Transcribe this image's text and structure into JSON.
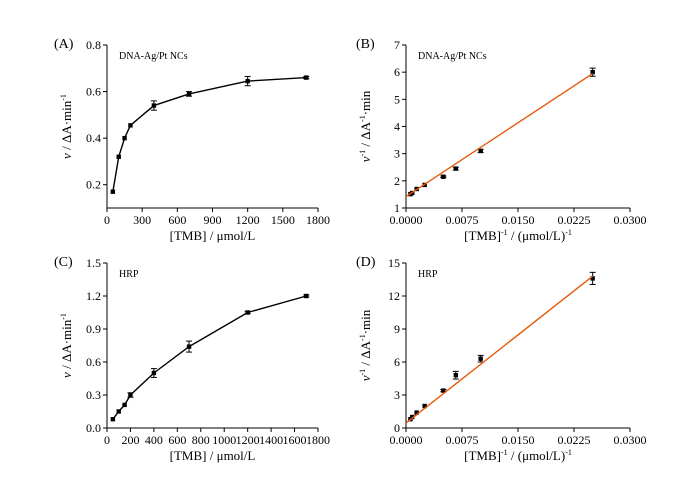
{
  "chart_data": [
    {
      "id": "A",
      "type": "line",
      "panel_label": "(A)",
      "annotation": "DNA-Ag/Pt NCs",
      "xlabel": "[TMB] / μmol/L",
      "ylabel": {
        "v": "v",
        "rest": " / ΔA·min",
        "sup": "-1"
      },
      "xlim": [
        0,
        1800
      ],
      "ylim": [
        0.1,
        0.8
      ],
      "xticks": [
        "0",
        "300",
        "600",
        "900",
        "1200",
        "1500",
        "1800"
      ],
      "xtick_values": [
        0,
        300,
        600,
        900,
        1200,
        1500,
        1800
      ],
      "yticks": [
        "0.2",
        "0.4",
        "0.6",
        "0.8"
      ],
      "ytick_values": [
        0.2,
        0.4,
        0.6,
        0.8
      ],
      "series": [
        {
          "name": "DNA-Ag/Pt NCs",
          "color": "#000000",
          "marker": "square",
          "x": [
            50,
            100,
            150,
            200,
            400,
            700,
            1200,
            1700
          ],
          "y": [
            0.17,
            0.32,
            0.4,
            0.455,
            0.54,
            0.59,
            0.645,
            0.66
          ],
          "err": [
            0,
            0,
            0,
            0,
            0.02,
            0.01,
            0.02,
            0.005
          ]
        }
      ]
    },
    {
      "id": "B",
      "type": "scatter",
      "panel_label": "(B)",
      "annotation": "DNA-Ag/Pt NCs",
      "xlabel": {
        "a": "[TMB]",
        "sup1": "-1",
        "b": " / (μmol/L)",
        "sup2": "-1"
      },
      "ylabel": {
        "v": "v",
        "sup1": "-1",
        "rest": " / ΔA",
        "sup2": "-1",
        "tail": "·min"
      },
      "xlim": [
        0,
        0.03
      ],
      "ylim": [
        1,
        7
      ],
      "xticks": [
        "0.0000",
        "0.0075",
        "0.0150",
        "0.0225",
        "0.0300"
      ],
      "xtick_values": [
        0,
        0.0075,
        0.015,
        0.0225,
        0.03
      ],
      "yticks": [
        "1",
        "2",
        "3",
        "4",
        "5",
        "6",
        "7"
      ],
      "ytick_values": [
        1,
        2,
        3,
        4,
        5,
        6,
        7
      ],
      "series": [
        {
          "name": "data",
          "color": "#000000",
          "marker": "square",
          "x": [
            0.000588,
            0.000833,
            0.001429,
            0.0025,
            0.005,
            0.00667,
            0.01,
            0.025
          ],
          "y": [
            1.51,
            1.55,
            1.7,
            1.85,
            2.15,
            2.45,
            3.1,
            6.0
          ],
          "err": [
            0,
            0,
            0,
            0,
            0.03,
            0.05,
            0.06,
            0.15
          ]
        },
        {
          "name": "linear fit",
          "color": "#e8590c",
          "line": true,
          "x": [
            0.0,
            0.025
          ],
          "y": [
            1.42,
            5.95
          ]
        }
      ]
    },
    {
      "id": "C",
      "type": "line",
      "panel_label": "(C)",
      "annotation": "HRP",
      "xlabel": "[TMB] / μmol/L",
      "ylabel": {
        "v": "v",
        "rest": " / ΔA·min",
        "sup": "-1"
      },
      "xlim": [
        0,
        1800
      ],
      "ylim": [
        0.0,
        1.5
      ],
      "xticks": [
        "0",
        "200",
        "400",
        "600",
        "800",
        "1000",
        "1200",
        "1400",
        "1600",
        "1800"
      ],
      "xtick_values": [
        0,
        200,
        400,
        600,
        800,
        1000,
        1200,
        1400,
        1600,
        1800
      ],
      "yticks": [
        "0.0",
        "0.3",
        "0.6",
        "0.9",
        "1.2",
        "1.5"
      ],
      "ytick_values": [
        0.0,
        0.3,
        0.6,
        0.9,
        1.2,
        1.5
      ],
      "series": [
        {
          "name": "HRP",
          "color": "#000000",
          "marker": "square",
          "x": [
            50,
            100,
            150,
            200,
            400,
            700,
            1200,
            1700
          ],
          "y": [
            0.08,
            0.15,
            0.21,
            0.3,
            0.5,
            0.74,
            1.05,
            1.2
          ],
          "err": [
            0,
            0,
            0,
            0.02,
            0.04,
            0.05,
            0.01,
            0.01
          ]
        }
      ]
    },
    {
      "id": "D",
      "type": "scatter",
      "panel_label": "(D)",
      "annotation": "HRP",
      "xlabel": {
        "a": "[TMB]",
        "sup1": "-1",
        "b": " / (μmol/L)",
        "sup2": "-1"
      },
      "ylabel": {
        "v": "v",
        "sup1": "-1",
        "rest": " / ΔA",
        "sup2": "-1",
        "tail": "·min"
      },
      "xlim": [
        0,
        0.03
      ],
      "ylim": [
        0,
        15
      ],
      "xticks": [
        "0.0000",
        "0.0075",
        "0.0150",
        "0.0225",
        "0.0300"
      ],
      "xtick_values": [
        0,
        0.0075,
        0.015,
        0.0225,
        0.03
      ],
      "yticks": [
        "0",
        "3",
        "6",
        "9",
        "12",
        "15"
      ],
      "ytick_values": [
        0,
        3,
        6,
        9,
        12,
        15
      ],
      "series": [
        {
          "name": "data",
          "color": "#000000",
          "marker": "square",
          "x": [
            0.000588,
            0.000833,
            0.001429,
            0.0025,
            0.005,
            0.00667,
            0.01,
            0.025
          ],
          "y": [
            0.8,
            1.0,
            1.4,
            2.0,
            3.4,
            4.8,
            6.3,
            13.6
          ],
          "err": [
            0,
            0,
            0,
            0,
            0.1,
            0.35,
            0.3,
            0.55
          ]
        },
        {
          "name": "linear fit",
          "color": "#e8590c",
          "line": true,
          "x": [
            0.0,
            0.025
          ],
          "y": [
            0.45,
            13.8
          ]
        }
      ]
    }
  ]
}
